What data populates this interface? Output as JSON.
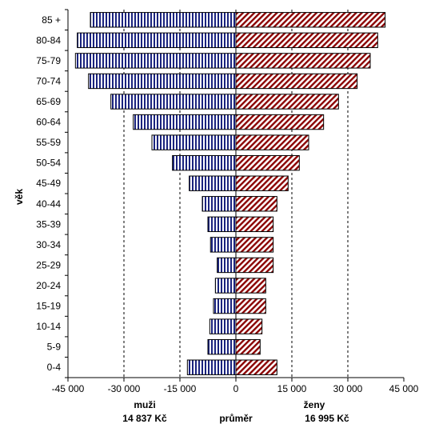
{
  "chart_data": {
    "type": "bar",
    "orientation": "horizontal",
    "layout": "population-pyramid",
    "ylabel": "věk",
    "categories": [
      "85 +",
      "80-84",
      "75-79",
      "70-74",
      "65-69",
      "60-64",
      "55-59",
      "50-54",
      "45-49",
      "40-44",
      "35-39",
      "30-34",
      "25-29",
      "20-24",
      "15-19",
      "10-14",
      "5-9",
      "0-4"
    ],
    "series": [
      {
        "name": "muži",
        "color": "#1a237e",
        "pattern": "vertical-stripes",
        "values": [
          -39000,
          -42500,
          -43000,
          -39500,
          -33500,
          -27500,
          -22500,
          -17000,
          -12500,
          -9000,
          -7500,
          -6800,
          -5000,
          -5500,
          -6000,
          -7000,
          -7500,
          -13000
        ]
      },
      {
        "name": "ženy",
        "color": "#8b0000",
        "pattern": "diagonal-stripes",
        "values": [
          40000,
          38000,
          36000,
          32500,
          27500,
          23500,
          19500,
          17000,
          14000,
          11000,
          10000,
          10000,
          10000,
          8000,
          8000,
          7000,
          6500,
          11000
        ]
      }
    ],
    "xlim": [
      -45000,
      45000
    ],
    "xticks": [
      -45000,
      -30000,
      -15000,
      0,
      15000,
      30000,
      45000
    ],
    "xtick_labels": [
      "-45 000",
      "-30 000",
      "-15 000",
      "0",
      "15 000",
      "30 000",
      "45 000"
    ],
    "reference_lines": [
      -30000,
      -15000,
      15000,
      30000
    ],
    "legend": "below-axis",
    "annotations": {
      "men_label": "muži",
      "women_label": "ženy",
      "men_value": "14 837 Kč",
      "women_value": "16 995 Kč",
      "middle_label": "průměr"
    }
  }
}
